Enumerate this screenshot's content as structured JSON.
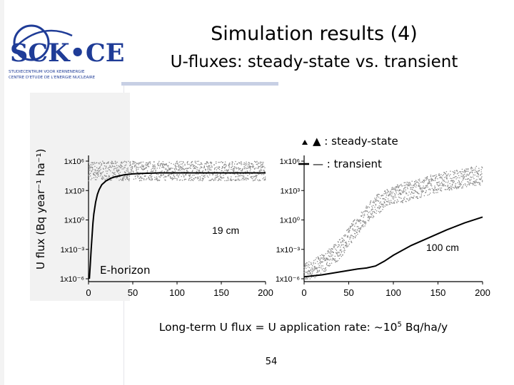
{
  "slide": {
    "title": "Simulation results (4)",
    "subtitle": "U-fluxes: steady-state vs. transient",
    "logo_text": "SCK•CEN",
    "logo_caption_1": "STUDIECENTRUM VOOR KERNENERGIE",
    "logo_caption_2": "CENTRE D'ETUDE DE L'ENERGIE NUCLEAIRE",
    "footnote_prefix": "Long-term U flux = U application rate: ~10",
    "footnote_exp": "5",
    "footnote_suffix": " Bq/ha/y",
    "page_number": "54",
    "colors": {
      "logo_blue": "#1f3c97",
      "accent_line": "#c7cfe4",
      "scatter": "#8a8a8a",
      "curve": "#000000"
    }
  },
  "chart_data": [
    {
      "type": "line",
      "annotation": "19 cm",
      "horizon_label": "E-horizon",
      "ylabel": "U flux (Bq year⁻¹ ha⁻¹)",
      "y_scale": "log",
      "xlim": [
        0,
        200
      ],
      "ylim_exp": [
        -6,
        6
      ],
      "xticks": [
        "0",
        "50",
        "100",
        "150",
        "200"
      ],
      "yticks": [
        "1x10⁻⁶",
        "1x10⁻³",
        "1x10⁰",
        "1x10³",
        "1x10⁶"
      ],
      "legend": [
        "▲ : steady-state",
        "— : transient"
      ],
      "series": [
        {
          "name": "transient",
          "x": [
            1,
            2,
            3,
            4,
            5,
            6,
            8,
            10,
            12,
            15,
            20,
            25,
            30,
            40,
            50,
            60,
            80,
            100,
            150,
            200
          ],
          "log10_y": [
            -6,
            -4.5,
            -3,
            -1.6,
            -0.3,
            0.6,
            1.8,
            2.6,
            3.1,
            3.6,
            4.0,
            4.25,
            4.4,
            4.6,
            4.7,
            4.75,
            4.8,
            4.8,
            4.8,
            4.8
          ]
        },
        {
          "name": "steady-state",
          "band_x": [
            0,
            200
          ],
          "band_log10_y": [
            4.0,
            6.0
          ]
        }
      ]
    },
    {
      "type": "line",
      "annotation": "100 cm",
      "y_scale": "log",
      "xlim": [
        0,
        200
      ],
      "ylim_exp": [
        -6,
        6
      ],
      "xticks": [
        "0",
        "50",
        "100",
        "150",
        "200"
      ],
      "yticks": [
        "1x10⁻⁶",
        "1x10⁻³",
        "1x10⁰",
        "1x10³",
        "1x10⁶"
      ],
      "series": [
        {
          "name": "transient",
          "x": [
            0,
            20,
            40,
            60,
            70,
            80,
            90,
            100,
            120,
            140,
            160,
            180,
            200
          ],
          "log10_y": [
            -5.8,
            -5.6,
            -5.3,
            -5.0,
            -4.9,
            -4.7,
            -4.2,
            -3.6,
            -2.6,
            -1.8,
            -1.0,
            -0.3,
            0.3
          ]
        },
        {
          "name": "steady-state",
          "band_x": [
            0,
            200
          ],
          "band_x_pts": [
            0,
            20,
            40,
            60,
            80,
            100,
            120,
            150,
            200
          ],
          "band_log10_y_mid": [
            -5.5,
            -4.5,
            -3.0,
            -0.5,
            1.5,
            2.5,
            3.0,
            3.8,
            4.6
          ]
        }
      ]
    }
  ]
}
